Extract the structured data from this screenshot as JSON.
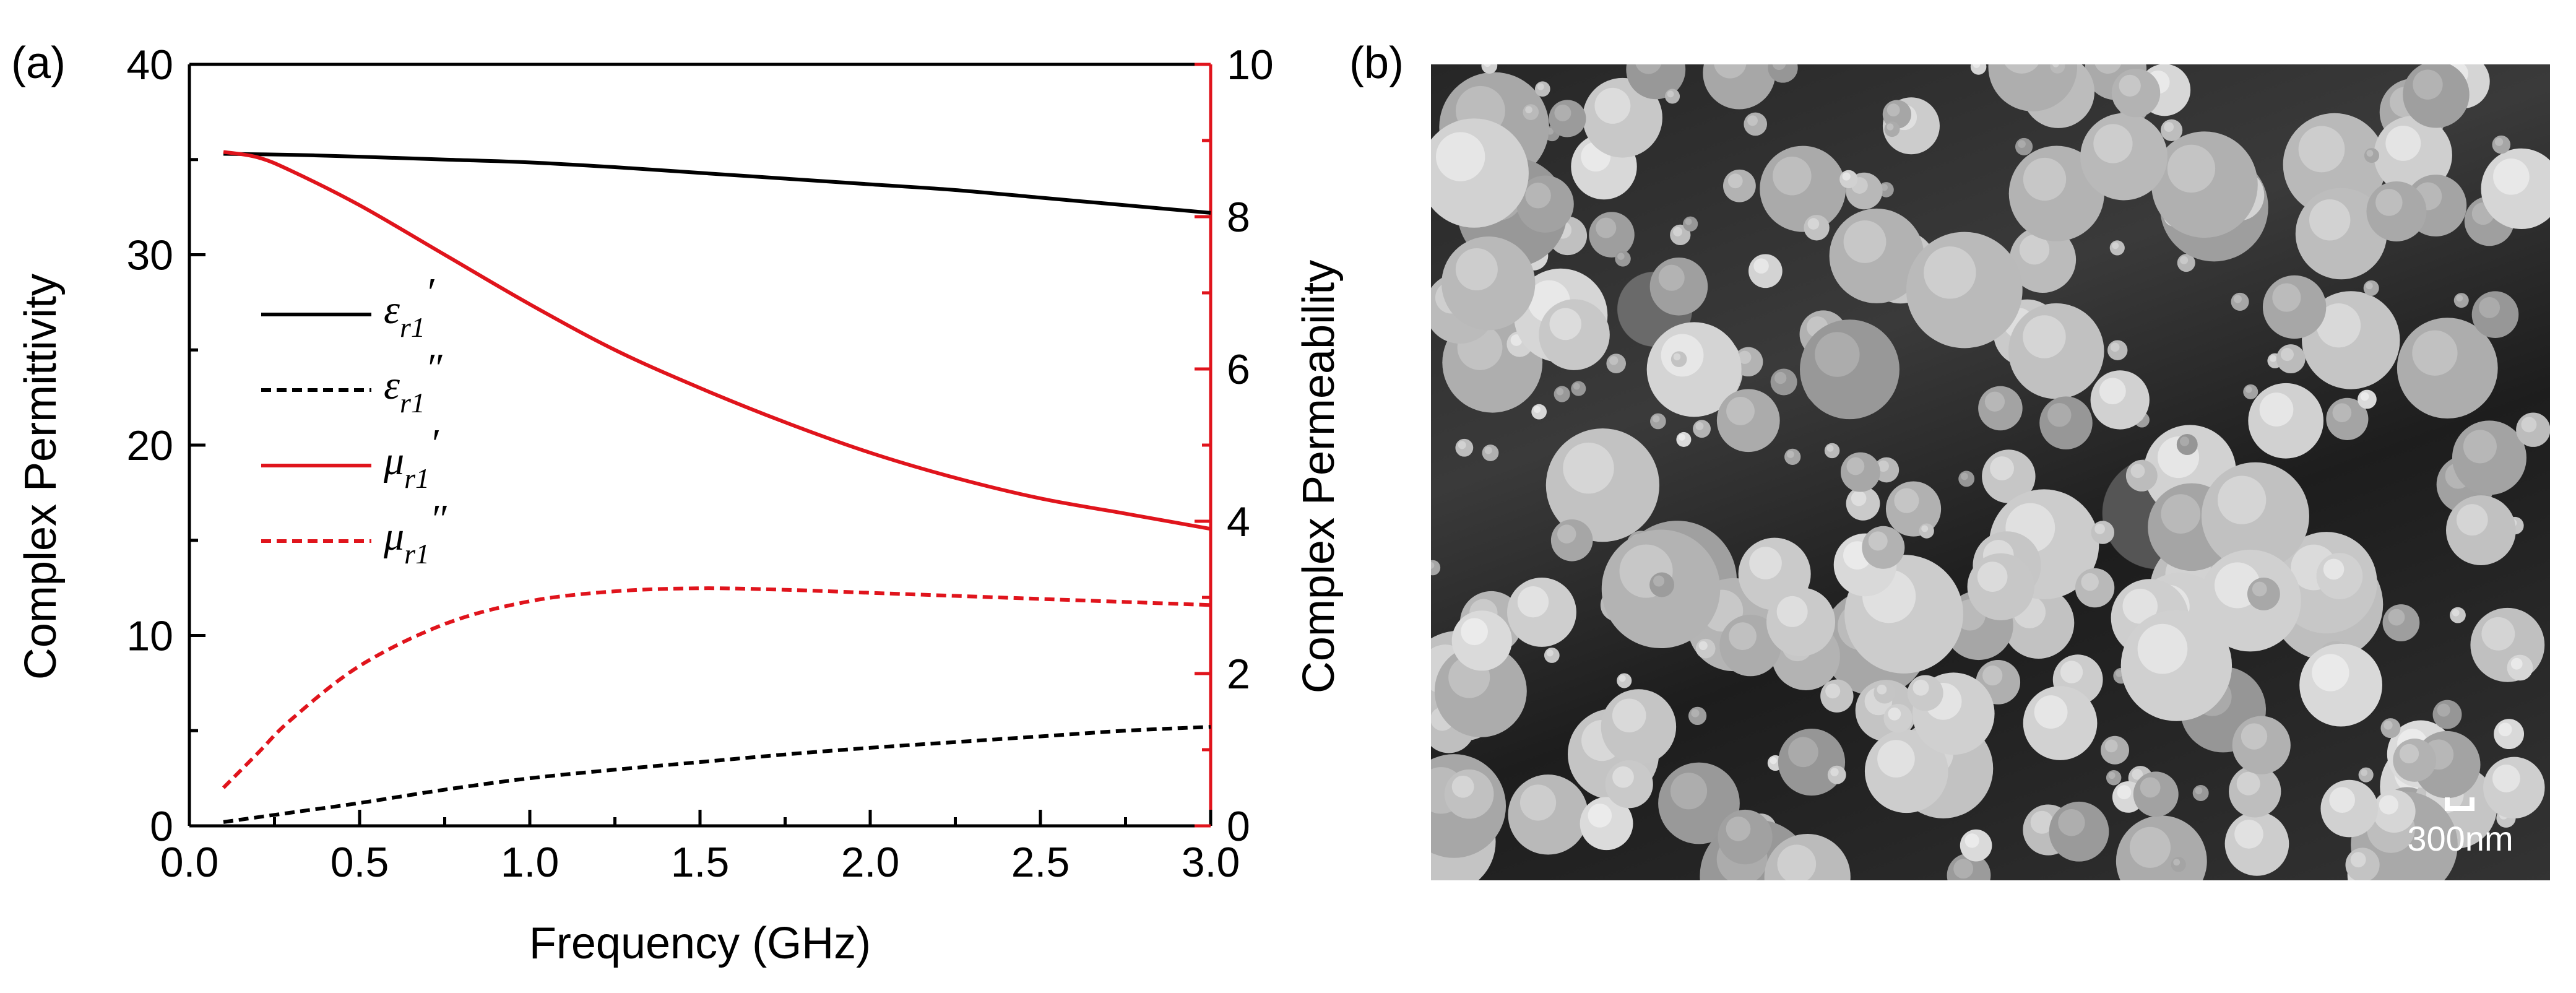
{
  "panels": {
    "a_label": "(a)",
    "b_label": "(b)"
  },
  "chart_data": {
    "type": "line",
    "title": "",
    "xlabel": "Frequency (GHz)",
    "ylabel_left": "Complex Permittivity",
    "ylabel_right": "Complex Permeability",
    "xlim": [
      0.0,
      3.0
    ],
    "ylim_left": [
      0,
      40
    ],
    "ylim_right": [
      0,
      10
    ],
    "x_ticks": [
      "0.0",
      "0.5",
      "1.0",
      "1.5",
      "2.0",
      "2.5",
      "3.0"
    ],
    "y_left_ticks": [
      "0",
      "10",
      "20",
      "30",
      "40"
    ],
    "y_right_ticks": [
      "0",
      "2",
      "4",
      "6",
      "8",
      "10"
    ],
    "right_axis_color": "#e0141c",
    "legend_position": "upper-left",
    "series": [
      {
        "name": "εr1′",
        "label_sym": "ε",
        "label_sub": "r1",
        "label_prime": "′",
        "axis": "left",
        "color": "#000000",
        "dash": "solid",
        "x": [
          0.1,
          0.3,
          0.5,
          0.75,
          1.0,
          1.25,
          1.5,
          1.75,
          2.0,
          2.25,
          2.5,
          2.75,
          3.0
        ],
        "y": [
          35.3,
          35.25,
          35.15,
          35.0,
          34.85,
          34.6,
          34.3,
          34.0,
          33.7,
          33.4,
          33.0,
          32.6,
          32.2
        ]
      },
      {
        "name": "εr1″",
        "label_sym": "ε",
        "label_sub": "r1",
        "label_prime": "″",
        "axis": "left",
        "color": "#000000",
        "dash": "dashed",
        "x": [
          0.1,
          0.3,
          0.5,
          0.75,
          1.0,
          1.25,
          1.5,
          1.75,
          2.0,
          2.25,
          2.5,
          2.75,
          3.0
        ],
        "y": [
          0.2,
          0.7,
          1.2,
          1.9,
          2.5,
          2.95,
          3.35,
          3.75,
          4.1,
          4.4,
          4.7,
          5.0,
          5.2
        ]
      },
      {
        "name": "μr1′",
        "label_sym": "μ",
        "label_sub": "r1",
        "label_prime": "′",
        "axis": "right",
        "color": "#e0141c",
        "dash": "solid",
        "x": [
          0.1,
          0.2,
          0.3,
          0.5,
          0.75,
          1.0,
          1.25,
          1.5,
          1.75,
          2.0,
          2.25,
          2.5,
          2.75,
          3.0
        ],
        "y": [
          8.85,
          8.78,
          8.6,
          8.15,
          7.5,
          6.85,
          6.25,
          5.75,
          5.3,
          4.9,
          4.57,
          4.3,
          4.1,
          3.9
        ]
      },
      {
        "name": "μr1″",
        "label_sym": "μ",
        "label_sub": "r1",
        "label_prime": "″",
        "axis": "right",
        "color": "#e0141c",
        "dash": "dashed",
        "x": [
          0.1,
          0.2,
          0.3,
          0.5,
          0.75,
          1.0,
          1.25,
          1.5,
          1.75,
          2.0,
          2.25,
          2.5,
          2.75,
          3.0
        ],
        "y": [
          0.5,
          0.95,
          1.4,
          2.1,
          2.65,
          2.95,
          3.08,
          3.12,
          3.1,
          3.06,
          3.02,
          2.98,
          2.94,
          2.9
        ]
      }
    ]
  },
  "sem_image": {
    "scale_bar_label": "300nm"
  }
}
